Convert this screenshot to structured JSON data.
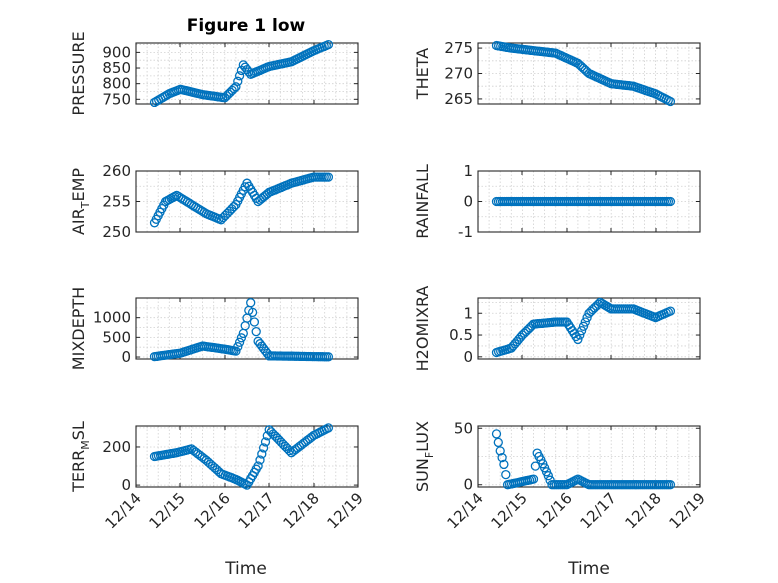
{
  "title": "Figure 1 low",
  "xlabel": "Time",
  "x_ticks": [
    "12/14",
    "12/15",
    "12/16",
    "12/17",
    "12/18",
    "12/19"
  ],
  "marker_color": "#0072BD",
  "chart_data": [
    {
      "type": "scatter",
      "ylabel": "PRESSURE",
      "yticks": [
        "750",
        "800",
        "850",
        "900"
      ],
      "ylim": [
        735,
        930
      ],
      "grid": true,
      "x": [
        "12/14 10:00",
        "12/14 18:00",
        "12/15 00:00",
        "12/15 12:00",
        "12/16 00:00",
        "12/16 06:00",
        "12/16 10:00",
        "12/16 14:00",
        "12/16 18:00",
        "12/17 00:00",
        "12/17 12:00",
        "12/18 00:00",
        "12/18 08:00"
      ],
      "values": [
        740,
        768,
        782,
        765,
        755,
        790,
        860,
        830,
        840,
        855,
        870,
        905,
        925
      ]
    },
    {
      "type": "scatter",
      "ylabel": "THETA",
      "yticks": [
        "265",
        "270",
        "275"
      ],
      "ylim": [
        264,
        276
      ],
      "grid": true,
      "x": [
        "12/14 10:00",
        "12/14 18:00",
        "12/15 06:00",
        "12/15 18:00",
        "12/16 00:00",
        "12/16 06:00",
        "12/16 12:00",
        "12/16 18:00",
        "12/17 00:00",
        "12/17 12:00",
        "12/18 00:00",
        "12/18 08:00"
      ],
      "values": [
        275.5,
        275,
        274.5,
        274,
        273,
        272,
        270,
        269,
        268,
        267.5,
        266,
        264.5
      ]
    },
    {
      "type": "scatter",
      "ylabel": "AIR_TEMP",
      "yticks": [
        "250",
        "255",
        "260"
      ],
      "ylim": [
        250,
        260
      ],
      "grid": true,
      "x": [
        "12/14 10:00",
        "12/14 16:00",
        "12/14 22:00",
        "12/15 06:00",
        "12/15 14:00",
        "12/15 22:00",
        "12/16 06:00",
        "12/16 12:00",
        "12/16 18:00",
        "12/17 00:00",
        "12/17 12:00",
        "12/18 00:00",
        "12/18 08:00"
      ],
      "values": [
        251.5,
        255,
        256,
        254.5,
        253,
        252,
        254.5,
        258,
        255,
        256.5,
        258,
        259,
        259
      ]
    },
    {
      "type": "scatter",
      "ylabel": "RAINFALL",
      "yticks": [
        "-1",
        "0",
        "1"
      ],
      "ylim": [
        -1,
        1
      ],
      "grid": true,
      "x": [
        "12/14 10:00",
        "12/18 08:00"
      ],
      "values": [
        0,
        0
      ]
    },
    {
      "type": "scatter",
      "ylabel": "MIXDEPTH",
      "yticks": [
        "0",
        "500",
        "1000"
      ],
      "ylim": [
        -50,
        1500
      ],
      "grid": true,
      "x": [
        "12/14 10:00",
        "12/15 00:00",
        "12/15 12:00",
        "12/16 00:00",
        "12/16 06:00",
        "12/16 10:00",
        "12/16 14:00",
        "12/16 18:00",
        "12/17 00:00",
        "12/18 08:00"
      ],
      "values": [
        10,
        100,
        280,
        200,
        150,
        600,
        1380,
        400,
        30,
        5
      ]
    },
    {
      "type": "scatter",
      "ylabel": "H2OMIXRA",
      "yticks": [
        "0",
        "0.5",
        "1"
      ],
      "ylim": [
        -0.05,
        1.35
      ],
      "grid": true,
      "x": [
        "12/14 10:00",
        "12/14 18:00",
        "12/15 00:00",
        "12/15 06:00",
        "12/15 18:00",
        "12/16 00:00",
        "12/16 06:00",
        "12/16 12:00",
        "12/16 18:00",
        "12/17 00:00",
        "12/17 12:00",
        "12/18 00:00",
        "12/18 08:00"
      ],
      "values": [
        0.1,
        0.2,
        0.5,
        0.75,
        0.8,
        0.8,
        0.4,
        1.0,
        1.25,
        1.1,
        1.1,
        0.9,
        1.05
      ]
    },
    {
      "type": "scatter",
      "ylabel": "TERR_MSL",
      "yticks": [
        "0",
        "200"
      ],
      "ylim": [
        -10,
        310
      ],
      "grid": true,
      "x": [
        "12/14 10:00",
        "12/14 22:00",
        "12/15 06:00",
        "12/15 14:00",
        "12/15 22:00",
        "12/16 06:00",
        "12/16 12:00",
        "12/16 18:00",
        "12/17 00:00",
        "12/17 12:00",
        "12/18 00:00",
        "12/18 08:00"
      ],
      "values": [
        150,
        170,
        190,
        130,
        60,
        30,
        0,
        100,
        290,
        170,
        260,
        300
      ]
    },
    {
      "type": "scatter",
      "ylabel": "SUN_FLUX",
      "yticks": [
        "0",
        "50"
      ],
      "ylim": [
        -2,
        52
      ],
      "grid": true,
      "x": [
        "12/14 10:00",
        "12/14 12:00",
        "12/14 14:00",
        "12/14 16:00",
        "12/15 06:00",
        "12/15 08:00",
        "12/15 10:00",
        "12/15 12:00",
        "12/15 14:00",
        "12/15 16:00",
        "12/16 00:00",
        "12/16 06:00",
        "12/16 12:00",
        "12/17 00:00",
        "12/18 08:00"
      ],
      "values": [
        45,
        30,
        18,
        0,
        5,
        28,
        22,
        15,
        8,
        0,
        0,
        5,
        0,
        0,
        0
      ]
    }
  ]
}
